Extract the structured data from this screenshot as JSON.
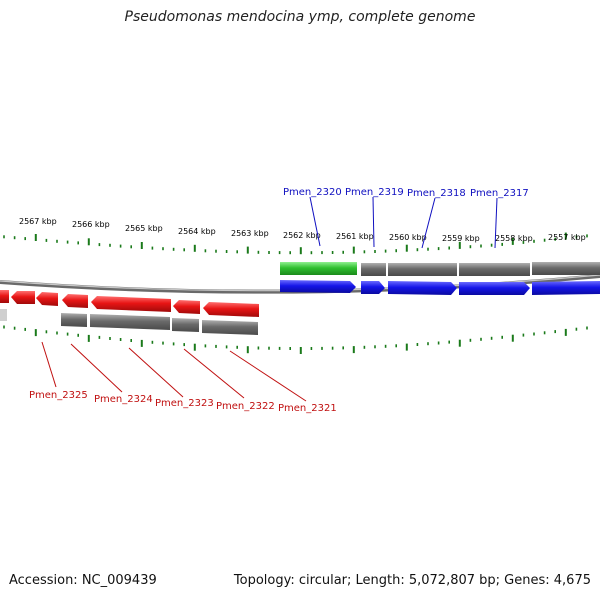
{
  "title": "Pseudomonas mendocina ymp, complete genome",
  "footer": {
    "accession": "Accession: NC_009439",
    "topology": "Topology: circular; Length: 5,072,807 bp; Genes: 4,675"
  },
  "scale_labels": [
    "2567 kbp",
    "2566 kbp",
    "2565 kbp",
    "2564 kbp",
    "2563 kbp",
    "2562 kbp",
    "2561 kbp",
    "2560 kbp",
    "2559 kbp",
    "2558 kbp",
    "2557 kbp"
  ],
  "forward_strand_genes": [
    "Pmen_2320",
    "Pmen_2319",
    "Pmen_2318",
    "Pmen_2317"
  ],
  "reverse_strand_genes": [
    "Pmen_2325",
    "Pmen_2324",
    "Pmen_2323",
    "Pmen_2322",
    "Pmen_2321"
  ],
  "colors": {
    "forward_cds": "#1010e0",
    "reverse_cds": "#e01010",
    "rna_or_other": "#30c030",
    "gene_gray": "#707070",
    "tick": "#1a7a1a",
    "backbone": "#8a8a8a"
  }
}
